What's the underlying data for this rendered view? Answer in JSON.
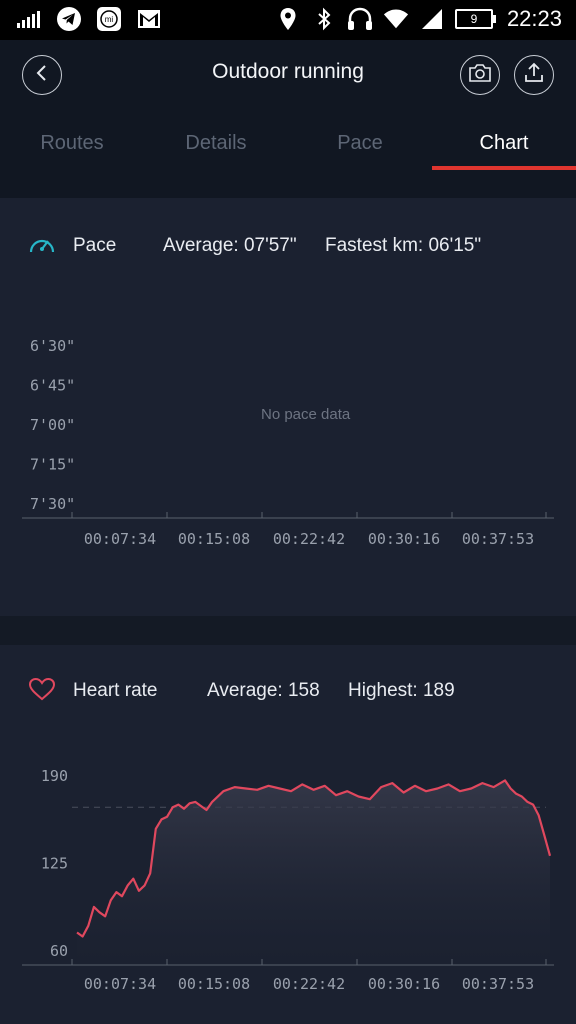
{
  "status_bar": {
    "time": "22:23",
    "battery": "9",
    "left_icons": [
      "signal-icon",
      "telegram-icon",
      "mi-icon",
      "gmail-icon"
    ],
    "right_icons": [
      "location-icon",
      "bluetooth-icon",
      "headphones-icon",
      "wifi-icon",
      "cell-signal-icon"
    ]
  },
  "header": {
    "title": "Outdoor running",
    "back_icon": "chevron-left-icon",
    "camera_icon": "camera-icon",
    "share_icon": "upload-icon"
  },
  "tabs": [
    {
      "label": "Routes",
      "active": false
    },
    {
      "label": "Details",
      "active": false
    },
    {
      "label": "Pace",
      "active": false
    },
    {
      "label": "Chart",
      "active": true
    }
  ],
  "accent_color": "#e0352f",
  "pace": {
    "label": "Pace",
    "average": "Average: 07'57\"",
    "fastest": "Fastest km: 06'15\"",
    "empty_message": "No pace data",
    "icon": "speedometer-icon",
    "icon_color": "#27b6c8"
  },
  "heart": {
    "label": "Heart rate",
    "average": "Average: 158",
    "highest": "Highest: 189",
    "icon": "heart-icon",
    "line_color": "#e0485e"
  },
  "chart_data": [
    {
      "type": "line",
      "title": "Pace",
      "y_ticks": [
        "6'30\"",
        "6'45\"",
        "7'00\"",
        "7'15\"",
        "7'30\""
      ],
      "x_ticks": [
        "00:07:34",
        "00:15:08",
        "00:22:42",
        "00:30:16",
        "00:37:53"
      ],
      "series": [],
      "grid": false
    },
    {
      "type": "area",
      "title": "Heart rate",
      "y_ticks": [
        "190",
        "125",
        "60"
      ],
      "ylim": [
        60,
        190
      ],
      "x_ticks": [
        "00:07:34",
        "00:15:08",
        "00:22:42",
        "00:30:16",
        "00:37:53"
      ],
      "x_minutes": [
        0,
        0.5,
        1,
        1.5,
        2,
        2.5,
        3,
        3.5,
        4,
        4.5,
        5,
        5.5,
        6,
        6.5,
        7,
        7.5,
        8,
        8.5,
        9,
        9.5,
        10,
        10.5,
        11,
        11.5,
        12,
        13,
        14,
        15,
        16,
        17,
        18,
        19,
        20,
        21,
        22,
        23,
        24,
        25,
        26,
        27,
        28,
        29,
        30,
        31,
        32,
        33,
        34,
        35,
        36,
        37,
        38,
        38.5,
        39,
        39.5,
        40,
        40.5,
        41,
        41.5,
        42
      ],
      "values": [
        73,
        70,
        78,
        92,
        88,
        85,
        97,
        103,
        100,
        108,
        113,
        104,
        108,
        117,
        150,
        157,
        159,
        166,
        168,
        165,
        169,
        170,
        167,
        164,
        170,
        178,
        181,
        180,
        179,
        182,
        180,
        178,
        183,
        179,
        182,
        175,
        178,
        174,
        172,
        181,
        184,
        177,
        182,
        178,
        180,
        183,
        178,
        180,
        184,
        181,
        186,
        180,
        176,
        174,
        170,
        168,
        160,
        145,
        130
      ],
      "reference_line": 166,
      "grid": false
    }
  ]
}
